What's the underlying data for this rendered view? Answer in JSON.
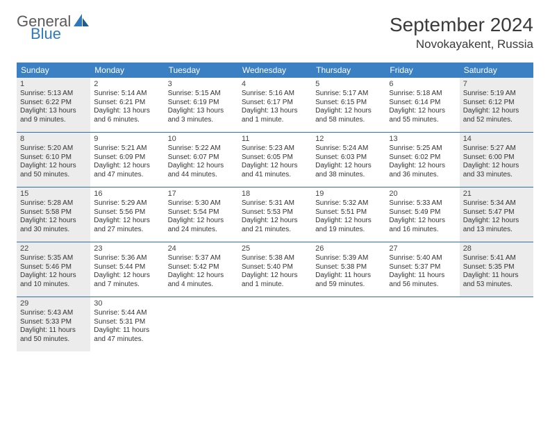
{
  "logo": {
    "general": "General",
    "blue": "Blue"
  },
  "title": "September 2024",
  "location": "Novokayakent, Russia",
  "colors": {
    "header_bg": "#3b80c2",
    "header_text": "#ffffff",
    "shade_bg": "#ececec",
    "rule": "#2f6fa8",
    "logo_gray": "#5a5a5a",
    "logo_blue": "#2f78bd"
  },
  "fonts": {
    "title_pt": 28,
    "location_pt": 17,
    "dow_pt": 12,
    "daynum_pt": 11,
    "body_pt": 10
  },
  "dow": [
    "Sunday",
    "Monday",
    "Tuesday",
    "Wednesday",
    "Thursday",
    "Friday",
    "Saturday"
  ],
  "weeks": [
    [
      {
        "n": "1",
        "shaded": true,
        "sr": "Sunrise: 5:13 AM",
        "ss": "Sunset: 6:22 PM",
        "dl1": "Daylight: 13 hours",
        "dl2": "and 9 minutes."
      },
      {
        "n": "2",
        "shaded": false,
        "sr": "Sunrise: 5:14 AM",
        "ss": "Sunset: 6:21 PM",
        "dl1": "Daylight: 13 hours",
        "dl2": "and 6 minutes."
      },
      {
        "n": "3",
        "shaded": false,
        "sr": "Sunrise: 5:15 AM",
        "ss": "Sunset: 6:19 PM",
        "dl1": "Daylight: 13 hours",
        "dl2": "and 3 minutes."
      },
      {
        "n": "4",
        "shaded": false,
        "sr": "Sunrise: 5:16 AM",
        "ss": "Sunset: 6:17 PM",
        "dl1": "Daylight: 13 hours",
        "dl2": "and 1 minute."
      },
      {
        "n": "5",
        "shaded": false,
        "sr": "Sunrise: 5:17 AM",
        "ss": "Sunset: 6:15 PM",
        "dl1": "Daylight: 12 hours",
        "dl2": "and 58 minutes."
      },
      {
        "n": "6",
        "shaded": false,
        "sr": "Sunrise: 5:18 AM",
        "ss": "Sunset: 6:14 PM",
        "dl1": "Daylight: 12 hours",
        "dl2": "and 55 minutes."
      },
      {
        "n": "7",
        "shaded": true,
        "sr": "Sunrise: 5:19 AM",
        "ss": "Sunset: 6:12 PM",
        "dl1": "Daylight: 12 hours",
        "dl2": "and 52 minutes."
      }
    ],
    [
      {
        "n": "8",
        "shaded": true,
        "sr": "Sunrise: 5:20 AM",
        "ss": "Sunset: 6:10 PM",
        "dl1": "Daylight: 12 hours",
        "dl2": "and 50 minutes."
      },
      {
        "n": "9",
        "shaded": false,
        "sr": "Sunrise: 5:21 AM",
        "ss": "Sunset: 6:09 PM",
        "dl1": "Daylight: 12 hours",
        "dl2": "and 47 minutes."
      },
      {
        "n": "10",
        "shaded": false,
        "sr": "Sunrise: 5:22 AM",
        "ss": "Sunset: 6:07 PM",
        "dl1": "Daylight: 12 hours",
        "dl2": "and 44 minutes."
      },
      {
        "n": "11",
        "shaded": false,
        "sr": "Sunrise: 5:23 AM",
        "ss": "Sunset: 6:05 PM",
        "dl1": "Daylight: 12 hours",
        "dl2": "and 41 minutes."
      },
      {
        "n": "12",
        "shaded": false,
        "sr": "Sunrise: 5:24 AM",
        "ss": "Sunset: 6:03 PM",
        "dl1": "Daylight: 12 hours",
        "dl2": "and 38 minutes."
      },
      {
        "n": "13",
        "shaded": false,
        "sr": "Sunrise: 5:25 AM",
        "ss": "Sunset: 6:02 PM",
        "dl1": "Daylight: 12 hours",
        "dl2": "and 36 minutes."
      },
      {
        "n": "14",
        "shaded": true,
        "sr": "Sunrise: 5:27 AM",
        "ss": "Sunset: 6:00 PM",
        "dl1": "Daylight: 12 hours",
        "dl2": "and 33 minutes."
      }
    ],
    [
      {
        "n": "15",
        "shaded": true,
        "sr": "Sunrise: 5:28 AM",
        "ss": "Sunset: 5:58 PM",
        "dl1": "Daylight: 12 hours",
        "dl2": "and 30 minutes."
      },
      {
        "n": "16",
        "shaded": false,
        "sr": "Sunrise: 5:29 AM",
        "ss": "Sunset: 5:56 PM",
        "dl1": "Daylight: 12 hours",
        "dl2": "and 27 minutes."
      },
      {
        "n": "17",
        "shaded": false,
        "sr": "Sunrise: 5:30 AM",
        "ss": "Sunset: 5:54 PM",
        "dl1": "Daylight: 12 hours",
        "dl2": "and 24 minutes."
      },
      {
        "n": "18",
        "shaded": false,
        "sr": "Sunrise: 5:31 AM",
        "ss": "Sunset: 5:53 PM",
        "dl1": "Daylight: 12 hours",
        "dl2": "and 21 minutes."
      },
      {
        "n": "19",
        "shaded": false,
        "sr": "Sunrise: 5:32 AM",
        "ss": "Sunset: 5:51 PM",
        "dl1": "Daylight: 12 hours",
        "dl2": "and 19 minutes."
      },
      {
        "n": "20",
        "shaded": false,
        "sr": "Sunrise: 5:33 AM",
        "ss": "Sunset: 5:49 PM",
        "dl1": "Daylight: 12 hours",
        "dl2": "and 16 minutes."
      },
      {
        "n": "21",
        "shaded": true,
        "sr": "Sunrise: 5:34 AM",
        "ss": "Sunset: 5:47 PM",
        "dl1": "Daylight: 12 hours",
        "dl2": "and 13 minutes."
      }
    ],
    [
      {
        "n": "22",
        "shaded": true,
        "sr": "Sunrise: 5:35 AM",
        "ss": "Sunset: 5:46 PM",
        "dl1": "Daylight: 12 hours",
        "dl2": "and 10 minutes."
      },
      {
        "n": "23",
        "shaded": false,
        "sr": "Sunrise: 5:36 AM",
        "ss": "Sunset: 5:44 PM",
        "dl1": "Daylight: 12 hours",
        "dl2": "and 7 minutes."
      },
      {
        "n": "24",
        "shaded": false,
        "sr": "Sunrise: 5:37 AM",
        "ss": "Sunset: 5:42 PM",
        "dl1": "Daylight: 12 hours",
        "dl2": "and 4 minutes."
      },
      {
        "n": "25",
        "shaded": false,
        "sr": "Sunrise: 5:38 AM",
        "ss": "Sunset: 5:40 PM",
        "dl1": "Daylight: 12 hours",
        "dl2": "and 1 minute."
      },
      {
        "n": "26",
        "shaded": false,
        "sr": "Sunrise: 5:39 AM",
        "ss": "Sunset: 5:38 PM",
        "dl1": "Daylight: 11 hours",
        "dl2": "and 59 minutes."
      },
      {
        "n": "27",
        "shaded": false,
        "sr": "Sunrise: 5:40 AM",
        "ss": "Sunset: 5:37 PM",
        "dl1": "Daylight: 11 hours",
        "dl2": "and 56 minutes."
      },
      {
        "n": "28",
        "shaded": true,
        "sr": "Sunrise: 5:41 AM",
        "ss": "Sunset: 5:35 PM",
        "dl1": "Daylight: 11 hours",
        "dl2": "and 53 minutes."
      }
    ],
    [
      {
        "n": "29",
        "shaded": true,
        "sr": "Sunrise: 5:43 AM",
        "ss": "Sunset: 5:33 PM",
        "dl1": "Daylight: 11 hours",
        "dl2": "and 50 minutes."
      },
      {
        "n": "30",
        "shaded": false,
        "sr": "Sunrise: 5:44 AM",
        "ss": "Sunset: 5:31 PM",
        "dl1": "Daylight: 11 hours",
        "dl2": "and 47 minutes."
      },
      {
        "blank": true
      },
      {
        "blank": true
      },
      {
        "blank": true
      },
      {
        "blank": true
      },
      {
        "blank": true
      }
    ]
  ]
}
